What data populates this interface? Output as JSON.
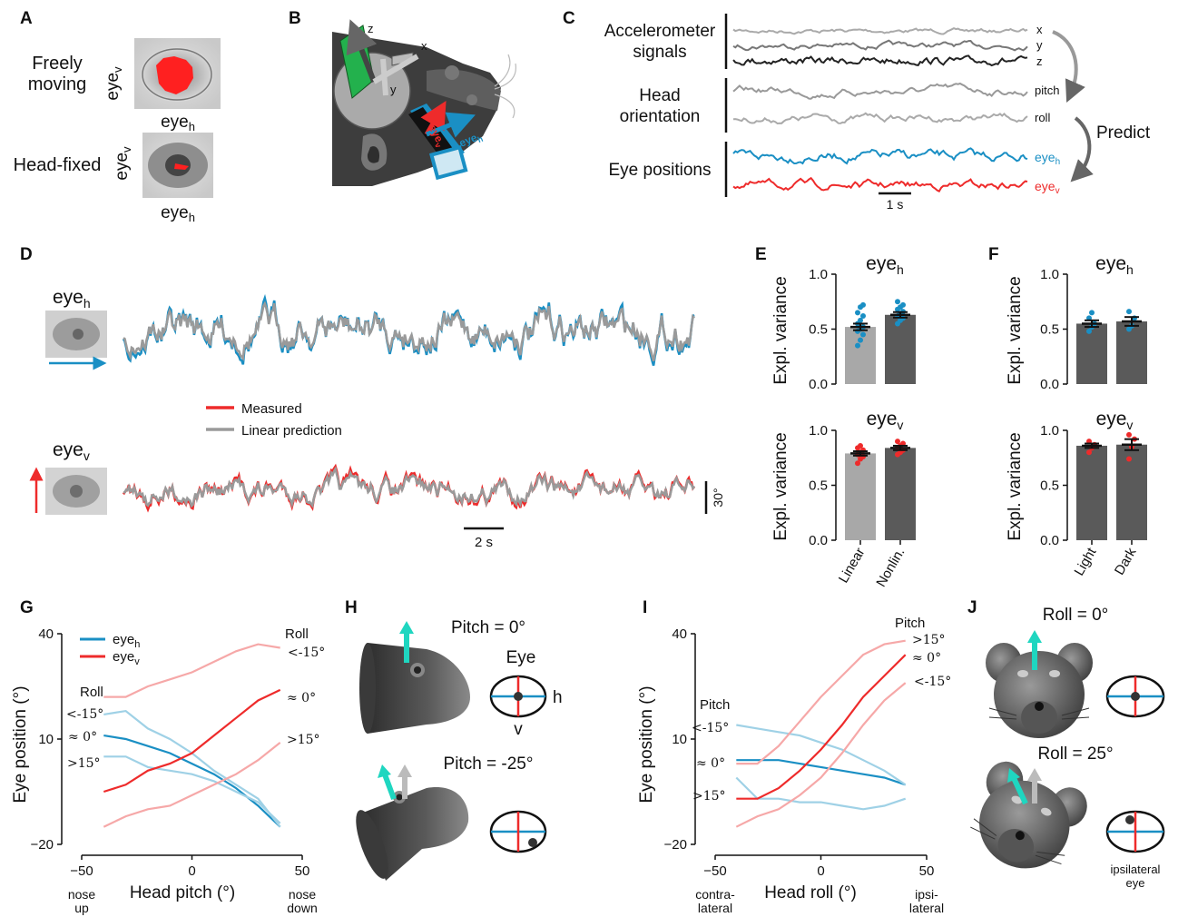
{
  "colors": {
    "blue": "#1a8fc4",
    "red": "#ee2b2b",
    "gray": "#9a9a9a",
    "lightblue": "#9fd1e6",
    "pink": "#f6a8a8",
    "darkbar": "#5a5a5a",
    "lightbar": "#a8a8a8",
    "green": "#23b14d",
    "cyan": "#1fd6c0"
  },
  "panels": {
    "a": {
      "letter": "A",
      "free_label_1": "Freely",
      "free_label_2": "moving",
      "fixed_label": "Head-fixed",
      "eye_v": "eye",
      "eye_v_sub": "v",
      "eye_h": "eye",
      "eye_h_sub": "h"
    },
    "b": {
      "letter": "B",
      "axis_x": "x",
      "axis_y": "y",
      "axis_z": "z",
      "eye_h": "eye",
      "eye_h_sub": "h",
      "eye_v": "eye",
      "eye_v_sub": "v"
    },
    "c": {
      "letter": "C",
      "acc_1": "Accelerometer",
      "acc_2": "signals",
      "head_1": "Head",
      "head_2": "orientation",
      "eyepos": "Eye positions",
      "tr_x": "x",
      "tr_y": "y",
      "tr_z": "z",
      "tr_pitch": "pitch",
      "tr_roll": "roll",
      "tr_eyeh": "eye",
      "tr_eyeh_sub": "h",
      "tr_eyev": "eye",
      "tr_eyev_sub": "v",
      "predict": "Predict",
      "scale": "1 s"
    },
    "d": {
      "letter": "D",
      "eye_h": "eye",
      "eye_h_sub": "h",
      "eye_v": "eye",
      "eye_v_sub": "v",
      "legend_measured": "Measured",
      "legend_pred": "Linear prediction",
      "scale_time": "2 s",
      "scale_deg": "30°"
    },
    "e": {
      "letter": "E",
      "title_top": "eye",
      "title_top_sub": "h",
      "title_bot": "eye",
      "title_bot_sub": "v",
      "ylabel": "Expl. variance",
      "yticks": [
        "0.0",
        "0.5",
        "1.0"
      ],
      "categories": [
        "Linear",
        "Nonlin."
      ]
    },
    "f": {
      "letter": "F",
      "title_top": "eye",
      "title_top_sub": "h",
      "title_bot": "eye",
      "title_bot_sub": "v",
      "ylabel": "Expl. variance",
      "yticks": [
        "0.0",
        "0.5",
        "1.0"
      ],
      "categories": [
        "Light",
        "Dark"
      ]
    },
    "g": {
      "letter": "G",
      "xlabel": "Head pitch (°)",
      "ylabel": "Eye position (°)",
      "xticks": [
        "−50",
        "0",
        "50"
      ],
      "yticks": [
        "−20",
        "10",
        "40"
      ],
      "x_note_left_1": "nose",
      "x_note_left_2": "up",
      "x_note_right_1": "nose",
      "x_note_right_2": "down",
      "legend_h": "eye",
      "legend_h_sub": "h",
      "legend_v": "eye",
      "legend_v_sub": "v",
      "roll_left": "Roll",
      "roll_right": "Roll",
      "lbl_lt15_left": "<-15°",
      "lbl_0_left": "≈ 0°",
      "lbl_gt15_left": ">15°",
      "lbl_lt15_right": "<-15°",
      "lbl_0_right": "≈ 0°",
      "lbl_gt15_right": ">15°"
    },
    "h": {
      "letter": "H",
      "pitch0": "Pitch = 0°",
      "pitch25": "Pitch = -25°",
      "eye": "Eye",
      "h": "h",
      "v": "v"
    },
    "i": {
      "letter": "I",
      "xlabel": "Head roll (°)",
      "ylabel": "Eye position (°)",
      "xticks": [
        "−50",
        "0",
        "50"
      ],
      "yticks": [
        "−20",
        "10",
        "40"
      ],
      "x_note_left_1": "contra-",
      "x_note_left_2": "lateral",
      "x_note_right_1": "ipsi-",
      "x_note_right_2": "lateral",
      "pitch_left": "Pitch",
      "pitch_right": "Pitch",
      "lbl_lt15_left": "<-15°",
      "lbl_0_left": "≈ 0°",
      "lbl_gt15_left": ">15°",
      "lbl_gt15_right": ">15°",
      "lbl_0_right": "≈ 0°",
      "lbl_lt15_right": "<-15°"
    },
    "j": {
      "letter": "J",
      "roll0": "Roll = 0°",
      "roll25": "Roll = 25°",
      "ipsi_1": "ipsilateral",
      "ipsi_2": "eye"
    }
  },
  "chart_data": [
    {
      "panel": "E-top",
      "type": "bar",
      "title": "eye h",
      "ylabel": "Expl. variance",
      "ylim": [
        0,
        1
      ],
      "categories": [
        "Linear",
        "Nonlin."
      ],
      "values": [
        0.52,
        0.63
      ],
      "errors": [
        0.03,
        0.025
      ],
      "points": [
        [
          0.35,
          0.4,
          0.45,
          0.48,
          0.5,
          0.52,
          0.55,
          0.58,
          0.62,
          0.65,
          0.7,
          0.72
        ],
        [
          0.55,
          0.58,
          0.6,
          0.62,
          0.64,
          0.66,
          0.68,
          0.7,
          0.72,
          0.75
        ]
      ]
    },
    {
      "panel": "E-bottom",
      "type": "bar",
      "title": "eye v",
      "ylabel": "Expl. variance",
      "ylim": [
        0,
        1
      ],
      "categories": [
        "Linear",
        "Nonlin."
      ],
      "values": [
        0.79,
        0.84
      ],
      "errors": [
        0.02,
        0.02
      ],
      "points": [
        [
          0.7,
          0.74,
          0.76,
          0.78,
          0.8,
          0.82,
          0.84,
          0.86
        ],
        [
          0.78,
          0.8,
          0.82,
          0.84,
          0.86,
          0.88,
          0.9
        ]
      ]
    },
    {
      "panel": "F-top",
      "type": "bar",
      "title": "eye h",
      "ylabel": "Expl. variance",
      "ylim": [
        0,
        1
      ],
      "categories": [
        "Light",
        "Dark"
      ],
      "values": [
        0.55,
        0.57
      ],
      "errors": [
        0.03,
        0.04
      ],
      "points": [
        [
          0.48,
          0.52,
          0.55,
          0.6,
          0.65
        ],
        [
          0.5,
          0.53,
          0.6,
          0.66
        ]
      ]
    },
    {
      "panel": "F-bottom",
      "type": "bar",
      "title": "eye v",
      "ylabel": "Expl. variance",
      "ylim": [
        0,
        1
      ],
      "categories": [
        "Light",
        "Dark"
      ],
      "values": [
        0.86,
        0.87
      ],
      "errors": [
        0.02,
        0.05
      ],
      "points": [
        [
          0.8,
          0.84,
          0.87,
          0.9
        ],
        [
          0.74,
          0.85,
          0.92,
          0.96
        ]
      ]
    },
    {
      "panel": "G",
      "type": "line",
      "xlabel": "Head pitch (°)",
      "ylabel": "Eye position (°)",
      "xlim": [
        -50,
        50
      ],
      "ylim": [
        -20,
        40
      ],
      "series": [
        {
          "name": "eye h",
          "roll": "≈ 0°",
          "color": "blue",
          "x": [
            -40,
            -30,
            -20,
            -10,
            0,
            10,
            20,
            30,
            40
          ],
          "y": [
            11,
            10,
            8,
            6,
            3,
            0,
            -4,
            -9,
            -15
          ]
        },
        {
          "name": "eye h",
          "roll": "<-15°",
          "color": "lightblue",
          "x": [
            -40,
            -30,
            -20,
            -10,
            0,
            10,
            20,
            30,
            40
          ],
          "y": [
            17,
            18,
            13,
            10,
            6,
            1,
            -3,
            -7,
            -15
          ]
        },
        {
          "name": "eye h",
          "roll": ">15°",
          "color": "lightblue",
          "x": [
            -40,
            -30,
            -20,
            -10,
            0,
            10,
            20,
            30,
            40
          ],
          "y": [
            5,
            5,
            2,
            1,
            0,
            -2,
            -5,
            -8,
            -14
          ]
        },
        {
          "name": "eye v",
          "roll": "≈ 0°",
          "color": "red",
          "x": [
            -40,
            -30,
            -20,
            -10,
            0,
            10,
            20,
            30,
            40
          ],
          "y": [
            -5,
            -3,
            1,
            3,
            6,
            11,
            16,
            21,
            24
          ]
        },
        {
          "name": "eye v",
          "roll": "<-15°",
          "color": "pink",
          "x": [
            -40,
            -30,
            -20,
            -10,
            0,
            10,
            20,
            30,
            40
          ],
          "y": [
            22,
            22,
            25,
            27,
            29,
            32,
            35,
            37,
            36
          ]
        },
        {
          "name": "eye v",
          "roll": ">15°",
          "color": "pink",
          "x": [
            -40,
            -30,
            -20,
            -10,
            0,
            10,
            20,
            30,
            40
          ],
          "y": [
            -15,
            -12,
            -10,
            -9,
            -6,
            -3,
            0,
            4,
            9
          ]
        }
      ]
    },
    {
      "panel": "I",
      "type": "line",
      "xlabel": "Head roll (°)",
      "ylabel": "Eye position (°)",
      "xlim": [
        -50,
        50
      ],
      "ylim": [
        -20,
        40
      ],
      "series": [
        {
          "name": "eye h",
          "pitch": "≈ 0°",
          "color": "blue",
          "x": [
            -40,
            -30,
            -20,
            -10,
            0,
            10,
            20,
            30,
            40
          ],
          "y": [
            4,
            4,
            4,
            3,
            2,
            1,
            0,
            -1,
            -3
          ]
        },
        {
          "name": "eye h",
          "pitch": "<-15°",
          "color": "lightblue",
          "x": [
            -40,
            -30,
            -20,
            -10,
            0,
            10,
            20,
            30,
            40
          ],
          "y": [
            14,
            13,
            12,
            11,
            9,
            7,
            4,
            1,
            -3
          ]
        },
        {
          "name": "eye h",
          "pitch": ">15°",
          "color": "lightblue",
          "x": [
            -40,
            -30,
            -20,
            -10,
            0,
            10,
            20,
            30,
            40
          ],
          "y": [
            -1,
            -7,
            -7,
            -8,
            -8,
            -9,
            -10,
            -9,
            -7
          ]
        },
        {
          "name": "eye v",
          "pitch": "≈ 0°",
          "color": "red",
          "x": [
            -40,
            -30,
            -20,
            -10,
            0,
            10,
            20,
            30,
            40
          ],
          "y": [
            -7,
            -7,
            -4,
            1,
            7,
            14,
            22,
            28,
            34
          ]
        },
        {
          "name": "eye v",
          "pitch": ">15°",
          "color": "pink",
          "x": [
            -40,
            -30,
            -20,
            -10,
            0,
            10,
            20,
            30,
            40
          ],
          "y": [
            3,
            3,
            8,
            15,
            22,
            28,
            34,
            37,
            38
          ]
        },
        {
          "name": "eye v",
          "pitch": "<-15°",
          "color": "pink",
          "x": [
            -40,
            -30,
            -20,
            -10,
            0,
            10,
            20,
            30,
            40
          ],
          "y": [
            -15,
            -12,
            -10,
            -6,
            -1,
            6,
            14,
            21,
            26
          ]
        }
      ]
    }
  ]
}
